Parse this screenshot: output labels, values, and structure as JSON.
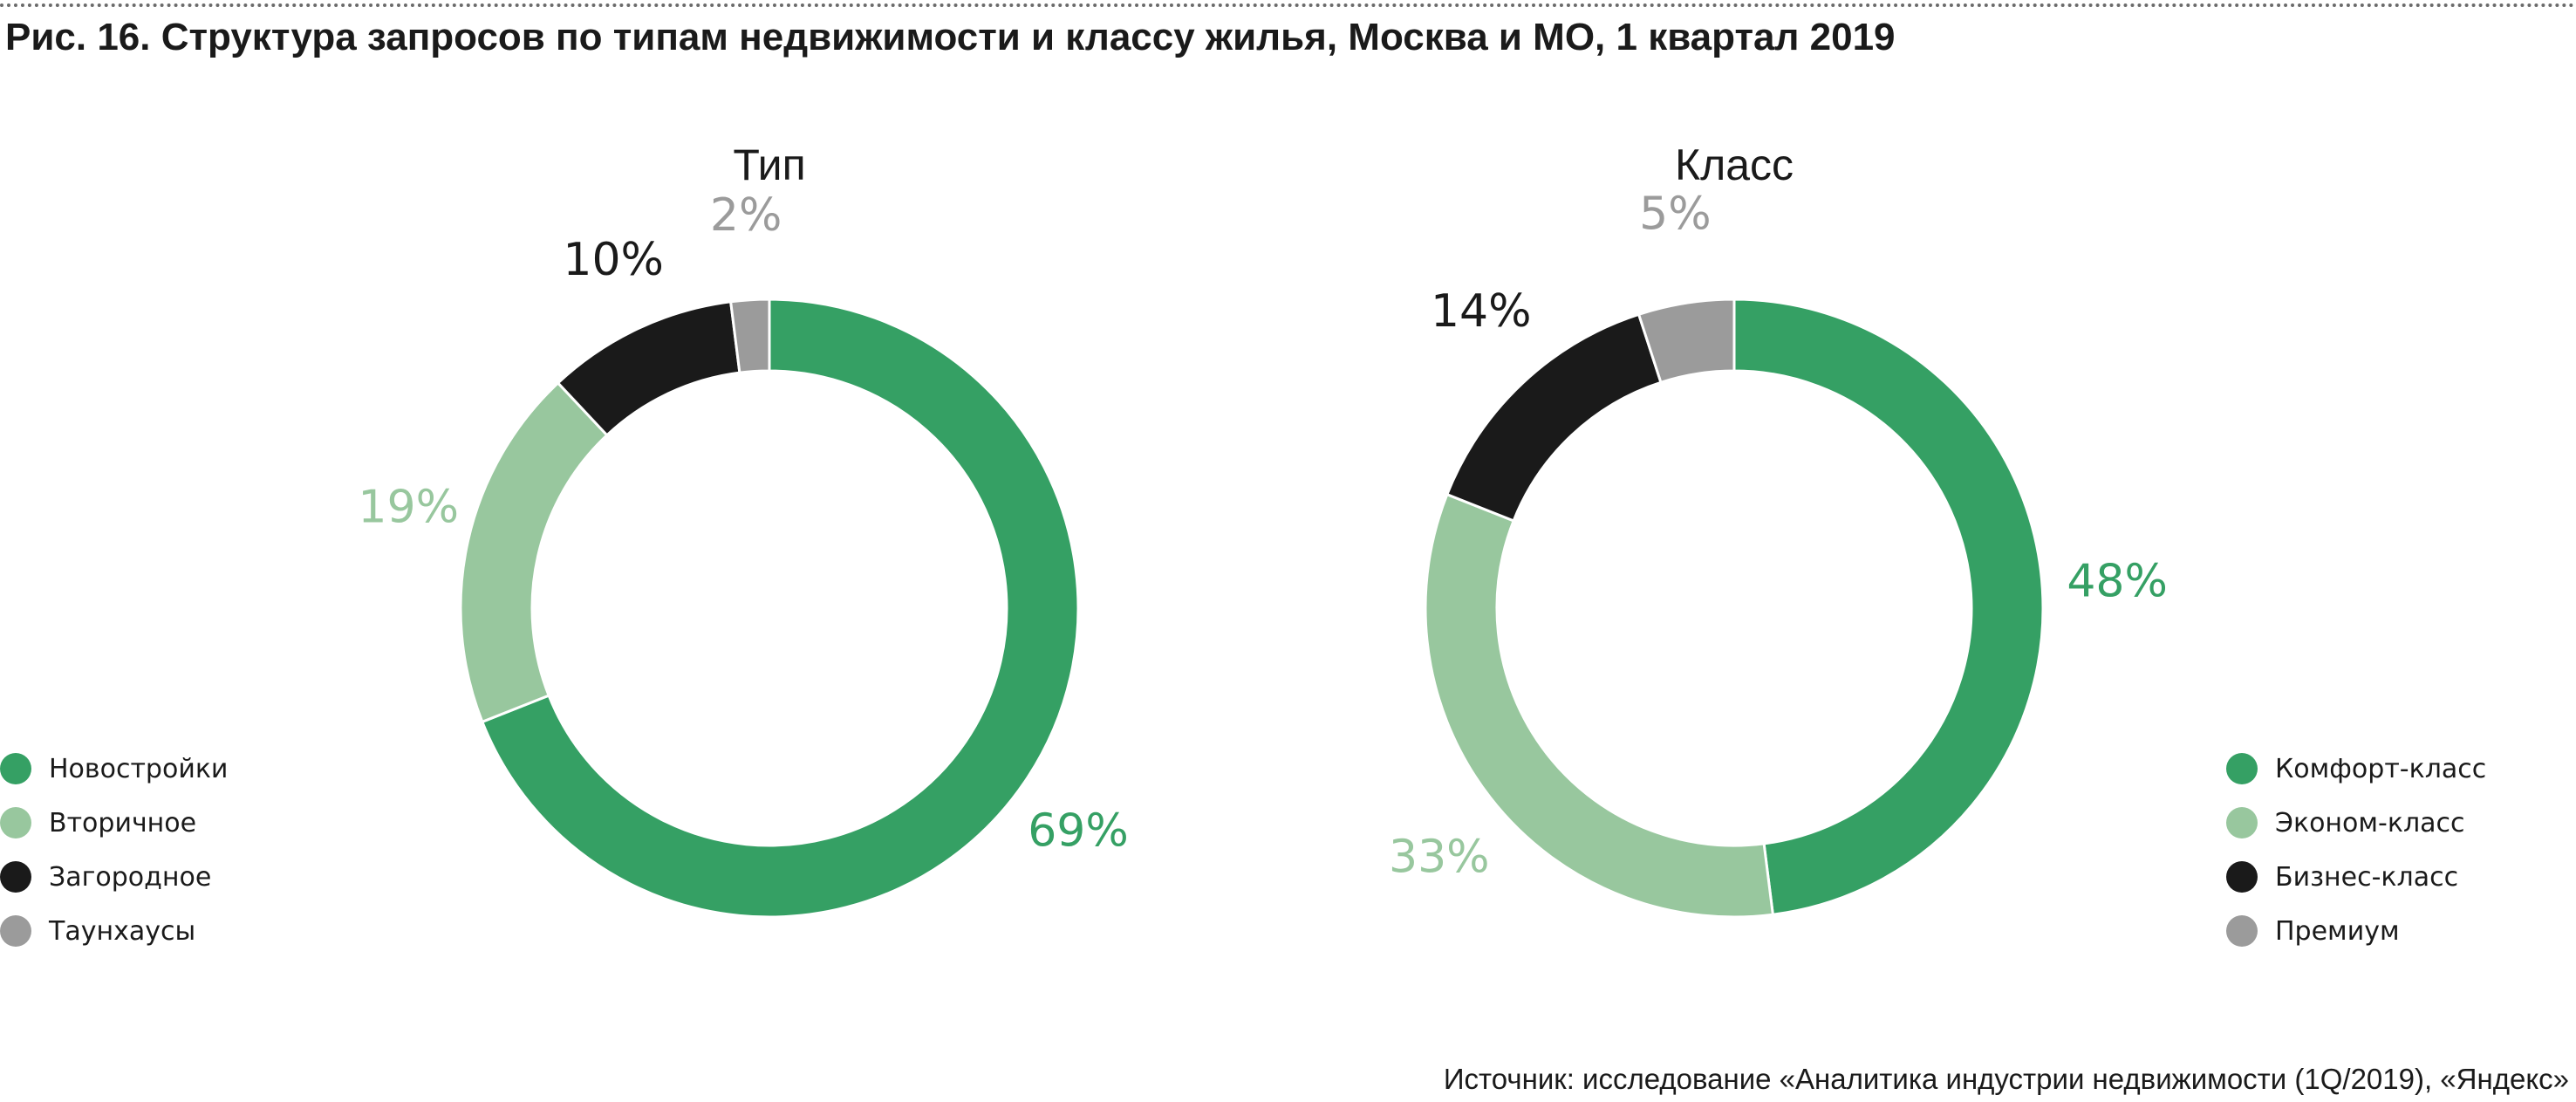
{
  "figure": {
    "title": "Рис. 16. Структура запросов по типам недвижимости и классу жилья, Москва и МО, 1 квартал 2019",
    "source": "Источник: исследование «Аналитика индустрии недвижимости (1Q/2019), «Яндекс»"
  },
  "colors": {
    "green": "#35a064",
    "light_green": "#98c79e",
    "black": "#1a1a1a",
    "gray": "#9b9b9b"
  },
  "chart_data": [
    {
      "type": "pie",
      "variant": "donut",
      "title": "Тип",
      "categories": [
        "Новостройки",
        "Вторичное",
        "Загородное",
        "Таунхаусы"
      ],
      "values": [
        69,
        19,
        10,
        2
      ],
      "data_labels": [
        "69%",
        "19%",
        "10%",
        "2%"
      ],
      "unit": "%",
      "colors": [
        "#35a064",
        "#98c79e",
        "#1a1a1a",
        "#9b9b9b"
      ],
      "legend_position": "left"
    },
    {
      "type": "pie",
      "variant": "donut",
      "title": "Класс",
      "categories": [
        "Комфорт-класс",
        "Эконом-класс",
        "Бизнес-класс",
        "Премиум"
      ],
      "values": [
        48,
        33,
        14,
        5
      ],
      "data_labels": [
        "48%",
        "33%",
        "14%",
        "5%"
      ],
      "unit": "%",
      "colors": [
        "#35a064",
        "#98c79e",
        "#1a1a1a",
        "#9b9b9b"
      ],
      "legend_position": "right"
    }
  ]
}
